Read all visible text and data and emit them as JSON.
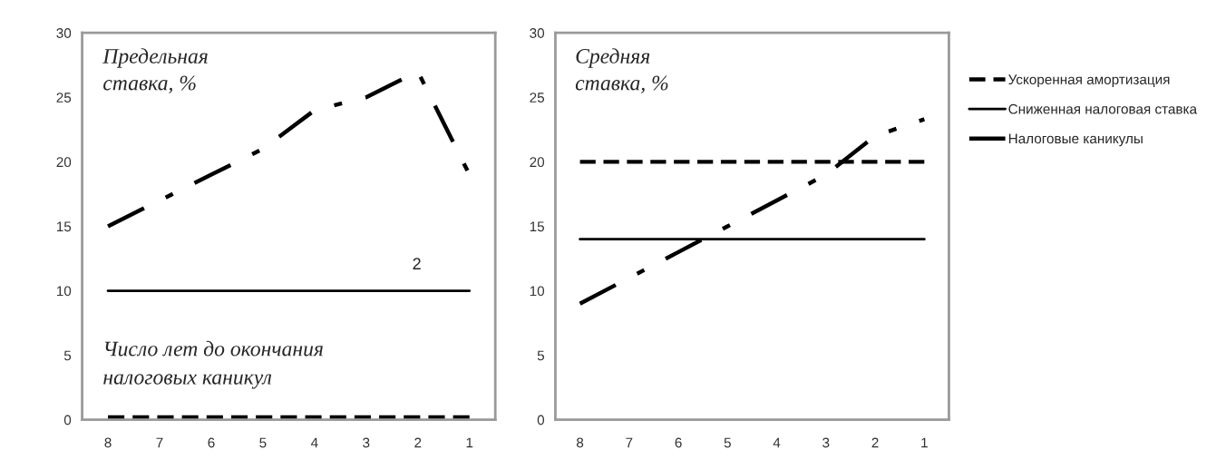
{
  "chart_data": [
    {
      "type": "line",
      "title": "Предельная\nставка, %",
      "categories": [
        "8",
        "7",
        "6",
        "5",
        "4",
        "3",
        "2",
        "1"
      ],
      "ylim": [
        0,
        30
      ],
      "yticks": [
        0,
        5,
        10,
        15,
        20,
        25,
        30
      ],
      "legend": false,
      "annotations": [
        "Число лет до окончания\nналоговых каникул",
        "2"
      ],
      "series": [
        {
          "color": "#000000",
          "line_style": "dashed",
          "values": [
            0.2,
            0.2,
            0.2,
            0.2,
            0.2,
            0.2,
            0.2,
            0.2
          ]
        },
        {
          "color": "#000000",
          "line_style": "solid",
          "values": [
            10,
            10,
            10,
            10,
            10,
            10,
            10,
            10
          ]
        },
        {
          "color": "#000000",
          "line_style": "dashdot",
          "values": [
            15,
            17,
            19,
            21,
            24,
            25,
            27,
            19
          ]
        }
      ]
    },
    {
      "type": "line",
      "title": "Средняя\nставка, %",
      "categories": [
        "8",
        "7",
        "6",
        "5",
        "4",
        "3",
        "2",
        "1"
      ],
      "ylim": [
        0,
        30
      ],
      "yticks": [
        0,
        5,
        10,
        15,
        20,
        25,
        30
      ],
      "legend": "right",
      "series": [
        {
          "name": "Ускоренная амортизация",
          "color": "#000000",
          "line_style": "dashed",
          "values": [
            20,
            20,
            20,
            20,
            20,
            20,
            20,
            20
          ]
        },
        {
          "name": "Сниженная налоговая ставка",
          "color": "#000000",
          "line_style": "solid",
          "values": [
            14,
            14,
            14,
            14,
            14,
            14,
            14,
            14
          ]
        },
        {
          "name": "Налоговые каникулы",
          "color": "#000000",
          "line_style": "dashdot",
          "values": [
            9,
            11,
            13,
            15,
            17,
            19,
            22,
            23.3
          ]
        }
      ]
    }
  ]
}
